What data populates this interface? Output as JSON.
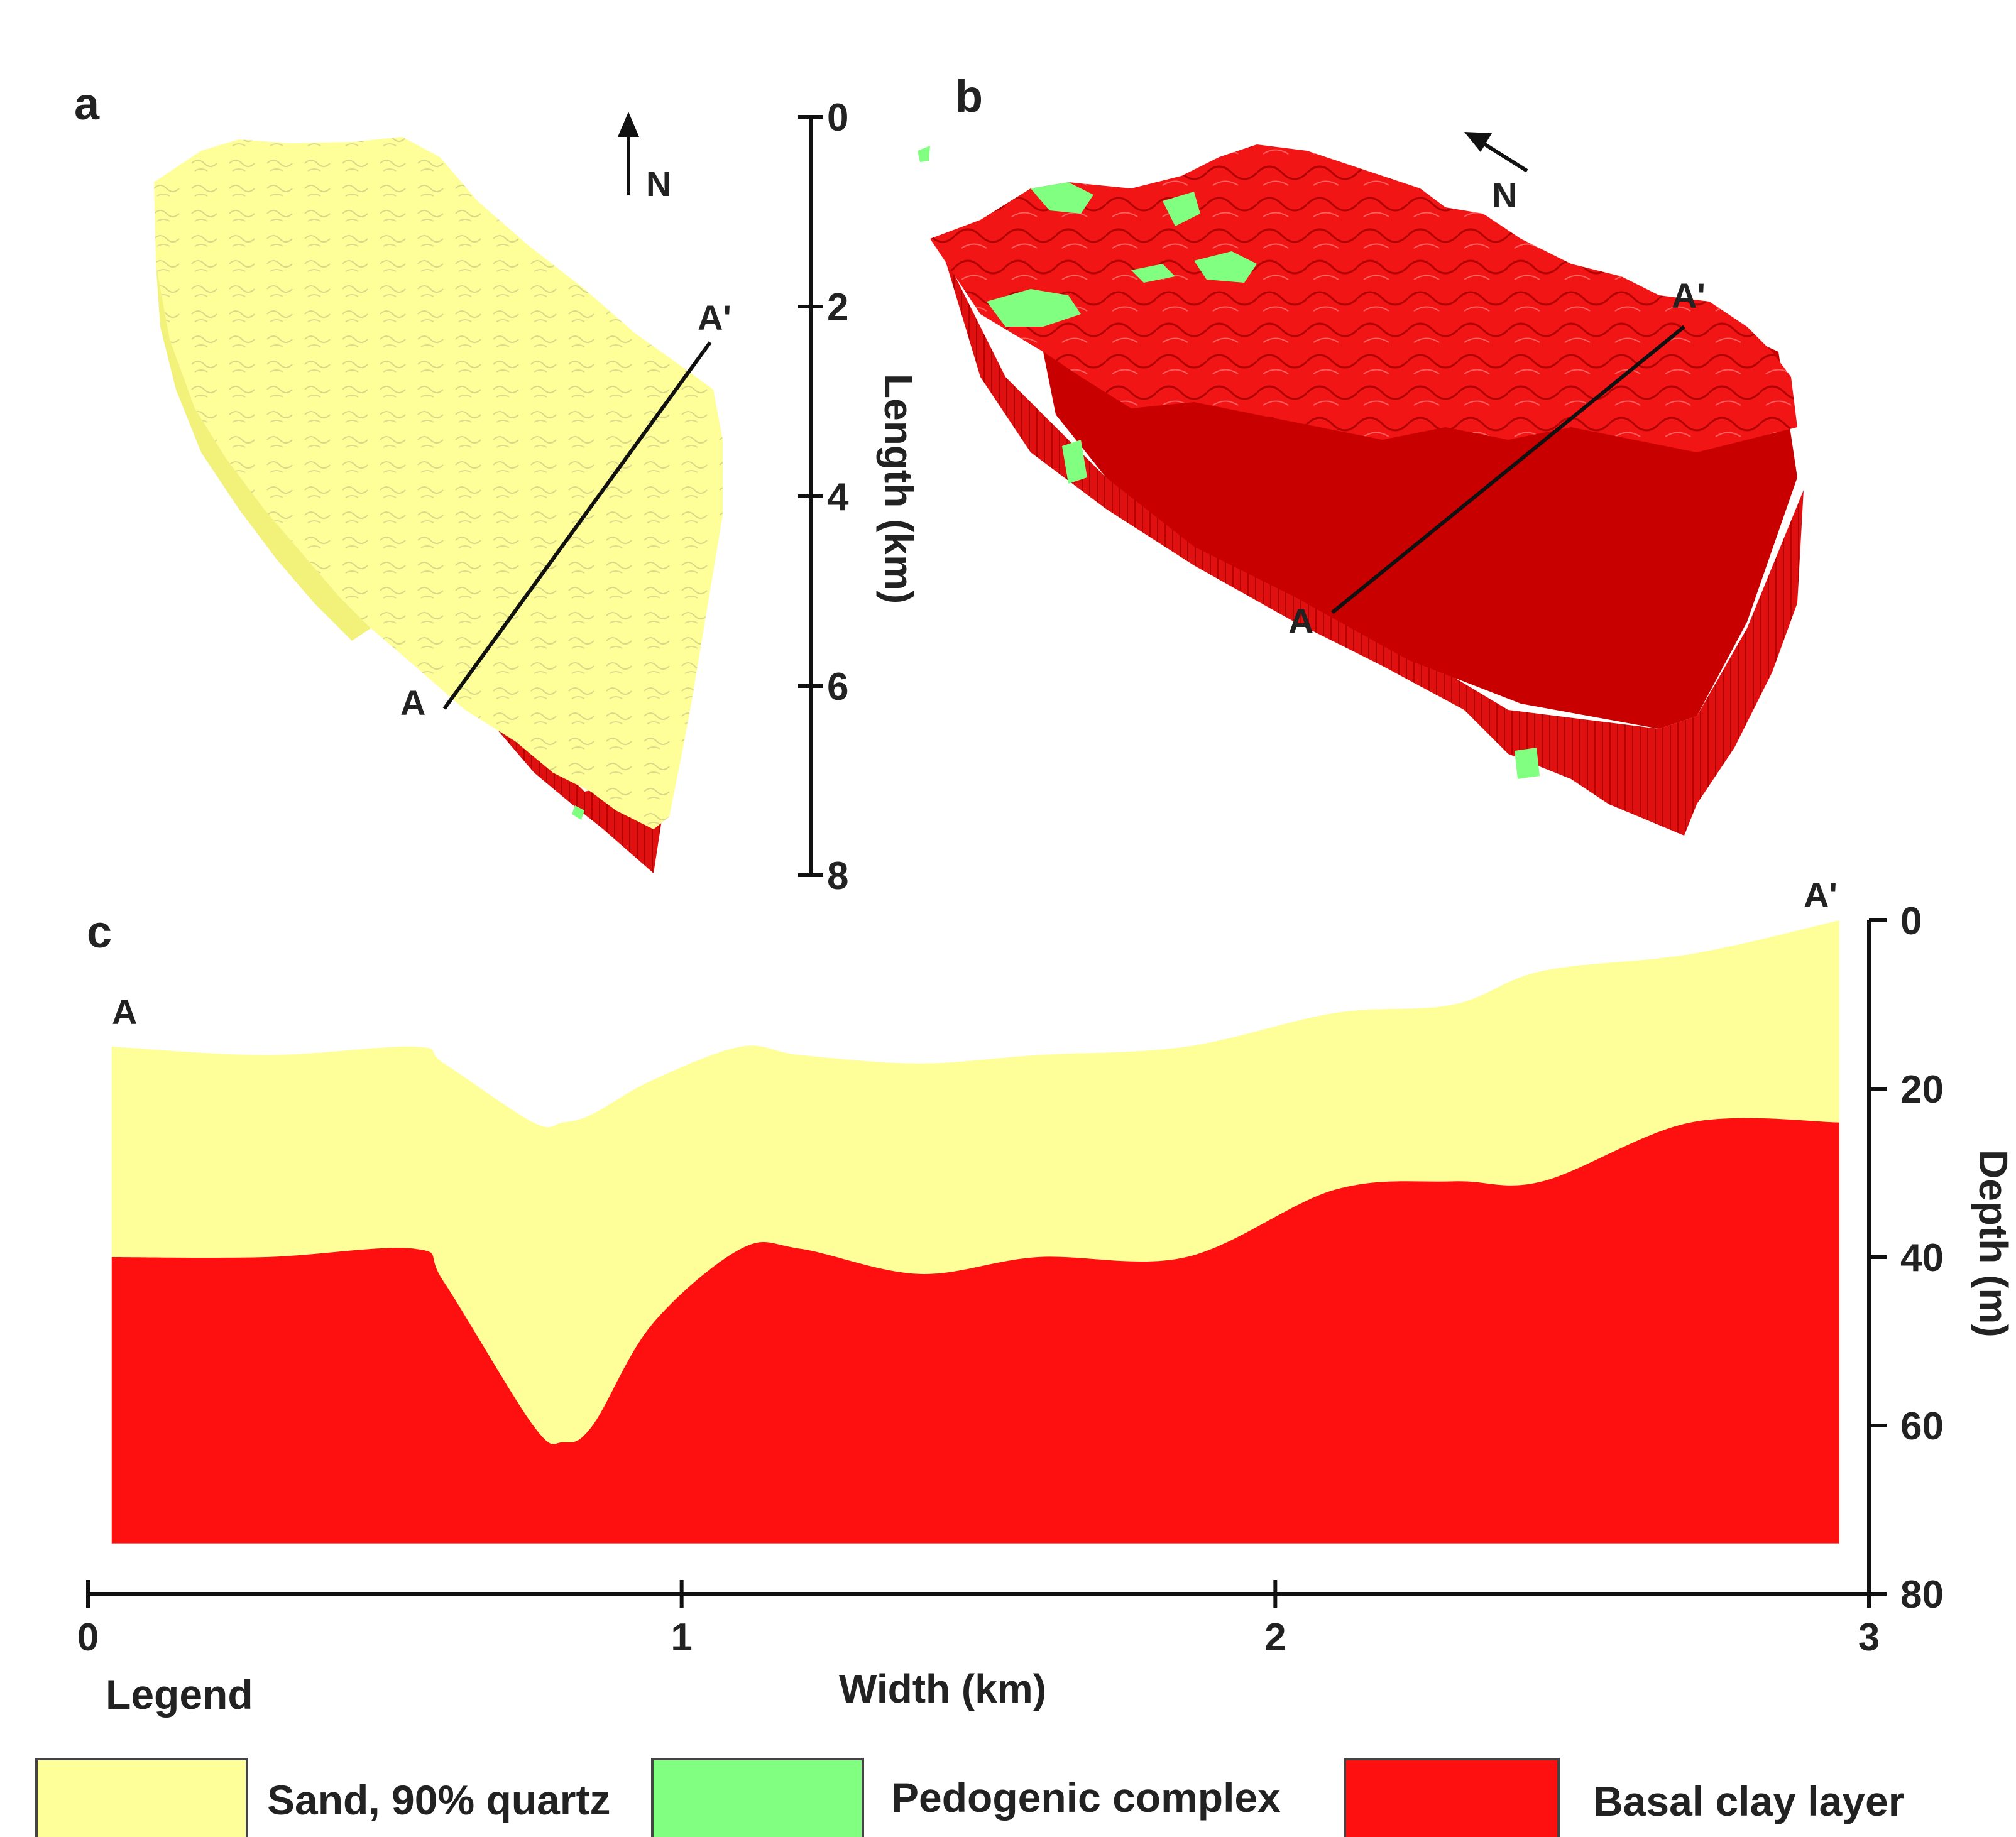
{
  "colors": {
    "sand": "#FFFF99",
    "pedogenic": "#80FF80",
    "basal_clay": "#FF1010",
    "basal_clay_dark": "#CC0000",
    "line": "#111111"
  },
  "panel_a": {
    "label": "a",
    "north": "N",
    "section_start": "A",
    "section_end": "A'"
  },
  "length_scale": {
    "title": "Length (km)",
    "ticks": [
      "0",
      "2",
      "4",
      "6",
      "8"
    ]
  },
  "panel_b": {
    "label": "b",
    "north": "N",
    "section_start": "A",
    "section_end": "A'"
  },
  "panel_c": {
    "label": "c",
    "section_start": "A",
    "section_end": "A'"
  },
  "chart_data": {
    "type": "area",
    "xlabel": "Width (km)",
    "ylabel": "Depth (m)",
    "xlim": [
      0,
      3
    ],
    "ylim": [
      80,
      0
    ],
    "x_ticks": [
      "0",
      "1",
      "2",
      "3"
    ],
    "y_ticks": [
      "0",
      "20",
      "40",
      "60",
      "80"
    ],
    "x": [
      0.04,
      0.3,
      0.55,
      0.6,
      0.75,
      0.8,
      0.85,
      0.95,
      1.1,
      1.2,
      1.4,
      1.6,
      1.85,
      2.1,
      2.3,
      2.45,
      2.7,
      2.95
    ],
    "series": [
      {
        "layer": "sand_top",
        "values": [
          15,
          16,
          15,
          17,
          24,
          24,
          23,
          19,
          15,
          16,
          17,
          16,
          15,
          11,
          10,
          6,
          4,
          0
        ]
      },
      {
        "layer": "basal_clay_top",
        "values": [
          40,
          40,
          39,
          43,
          60,
          62,
          60,
          48,
          39,
          39,
          42,
          40,
          40,
          32,
          31,
          31,
          24,
          24
        ]
      }
    ],
    "base_depth": 74
  },
  "legend": {
    "title": "Legend",
    "items": [
      {
        "label": "Sand, 90% quartz",
        "color": "#FFFF99"
      },
      {
        "label": "Pedogenic complex",
        "color": "#80FF80"
      },
      {
        "label": "Basal clay layer",
        "color": "#FF1010"
      }
    ]
  }
}
